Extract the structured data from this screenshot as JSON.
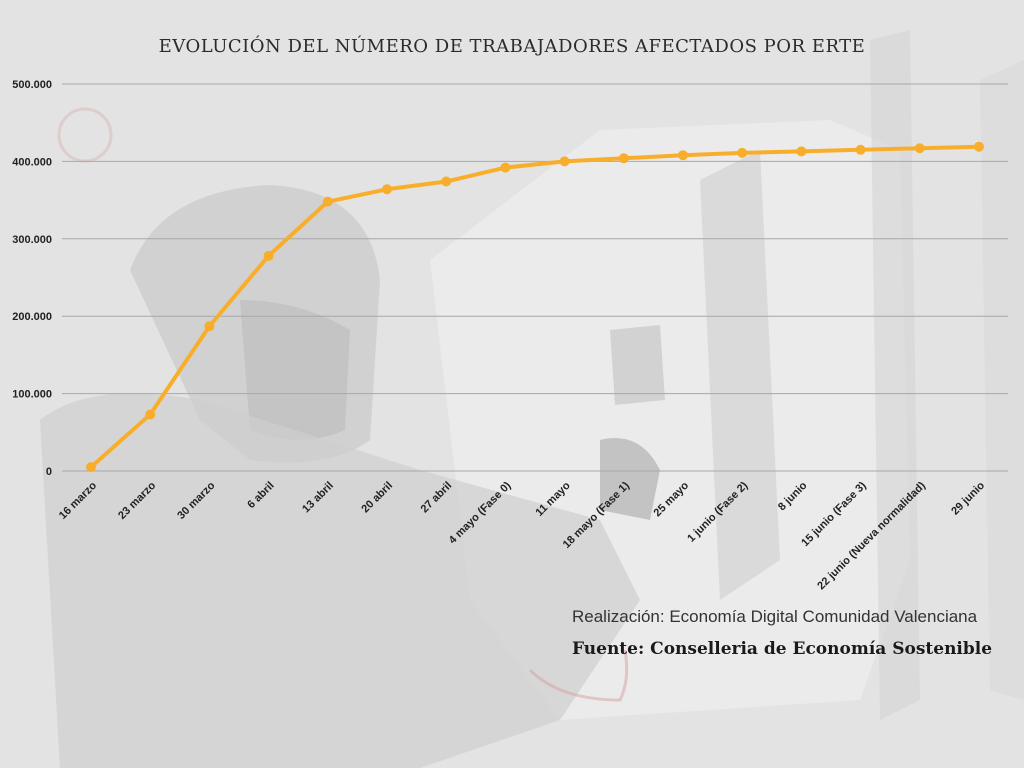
{
  "colors": {
    "background": "#e2e2e2",
    "line": "#f9ae2b",
    "gridline": "#a8a8a8",
    "text": "#222222"
  },
  "background_image": "photo-worker-in-protective-suit-spray-painting-car",
  "title": "EVOLUCIÓN DEL NÚMERO DE TRABAJADORES AFECTADOS POR ERTE",
  "credit": "Realización: Economía Digital Comunidad Valenciana",
  "source": "Fuente: Conselleria de Economía Sostenible",
  "chart_data": {
    "type": "line",
    "title": "EVOLUCIÓN DEL NÚMERO DE TRABAJADORES AFECTADOS POR ERTE",
    "xlabel": "",
    "ylabel": "",
    "categories": [
      "16 marzo",
      "23 marzo",
      "30 marzo",
      "6 abril",
      "13 abril",
      "20 abril",
      "27 abril",
      "4 mayo (Fase 0)",
      "11 mayo",
      "18 mayo (Fase 1)",
      "25 mayo",
      "1 junio (Fase 2)",
      "8 junio",
      "15 junio (Fase 3)",
      "22 junio (Nueva normalidad)",
      "29 junio"
    ],
    "series": [
      {
        "values": [
          5000,
          73000,
          187000,
          278000,
          348000,
          364000,
          374000,
          392000,
          400000,
          404000,
          408000,
          411000,
          413000,
          415000,
          417000,
          419000
        ]
      }
    ],
    "ylim": [
      0,
      500000
    ],
    "yticks": [
      0,
      100000,
      200000,
      300000,
      400000,
      500000
    ],
    "ytick_labels": [
      "0",
      "100.000",
      "200.000",
      "300.000",
      "400.000",
      "500.000"
    ],
    "grid": true,
    "legend": "none"
  }
}
